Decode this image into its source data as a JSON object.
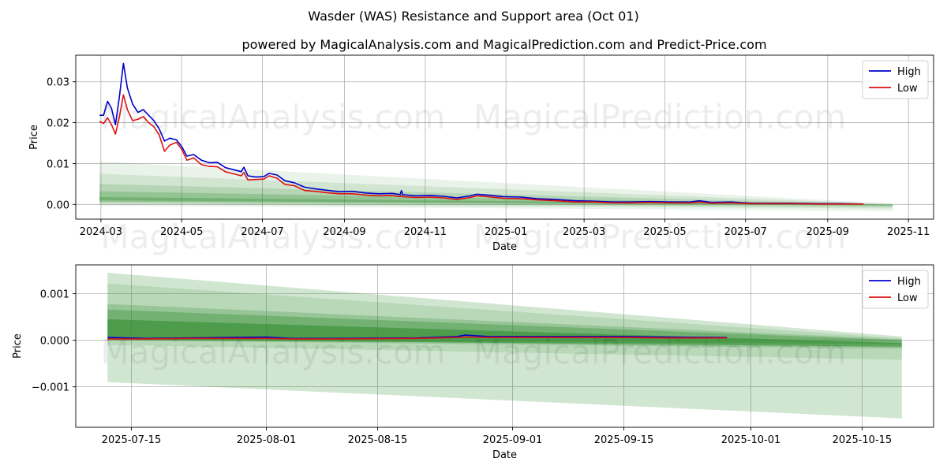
{
  "title": "Wasder (WAS) Resistance and Support area (Oct 01)",
  "subtitle": "powered by MagicalAnalysis.com and MagicalPrediction.com and Predict-Price.com",
  "watermarks": [
    "MagicalAnalysis.com",
    "MagicalPrediction.com"
  ],
  "colors": {
    "high": "#0000cc",
    "low": "#dd1111",
    "band": "#2e8b2e",
    "grid": "#b0b0b0"
  },
  "chart_data": [
    {
      "type": "line",
      "xlabel": "Date",
      "ylabel": "Price",
      "x_range": [
        "2024-02-11",
        "2025-11-20"
      ],
      "ylim": [
        -0.0036,
        0.0365
      ],
      "x_ticks": [
        "2024-03-01",
        "2024-05-01",
        "2024-07-01",
        "2024-09-01",
        "2024-11-01",
        "2025-01-01",
        "2025-03-01",
        "2025-05-01",
        "2025-07-01",
        "2025-09-01",
        "2025-11-01"
      ],
      "x_tick_labels": [
        "2024-03",
        "2024-05",
        "2024-07",
        "2024-09",
        "2024-11",
        "2025-01",
        "2025-03",
        "2025-05",
        "2025-07",
        "2025-09",
        "2025-11"
      ],
      "y_ticks": [
        0.0,
        0.01,
        0.02,
        0.03
      ],
      "y_tick_labels": [
        "0.00",
        "0.01",
        "0.02",
        "0.03"
      ],
      "legend": {
        "position": "top-right",
        "entries": [
          "High",
          "Low"
        ]
      },
      "bands": {
        "start": "2024-02-29",
        "end": "2025-10-20",
        "start_ranges": [
          [
            -0.0003,
            0.0105
          ],
          [
            0.0001,
            0.0075
          ],
          [
            0.0004,
            0.005
          ],
          [
            0.0007,
            0.0032
          ],
          [
            0.001,
            0.0018
          ]
        ],
        "end_ranges": [
          [
            -0.0016,
            0.0002
          ],
          [
            -0.001,
            0.0001
          ],
          [
            -0.0006,
            0.0
          ],
          [
            -0.0003,
            -0.0001
          ],
          [
            -0.00025,
            -0.00015
          ]
        ],
        "opacities": [
          0.1,
          0.13,
          0.17,
          0.24,
          0.32
        ]
      },
      "series": [
        {
          "name": "High",
          "points": [
            [
              "2024-02-29",
              0.0218
            ],
            [
              "2024-03-03",
              0.0218
            ],
            [
              "2024-03-06",
              0.0252
            ],
            [
              "2024-03-09",
              0.0235
            ],
            [
              "2024-03-12",
              0.0195
            ],
            [
              "2024-03-15",
              0.0265
            ],
            [
              "2024-03-18",
              0.0345
            ],
            [
              "2024-03-21",
              0.0285
            ],
            [
              "2024-03-25",
              0.0245
            ],
            [
              "2024-03-29",
              0.0225
            ],
            [
              "2024-04-02",
              0.0232
            ],
            [
              "2024-04-06",
              0.0218
            ],
            [
              "2024-04-10",
              0.0205
            ],
            [
              "2024-04-14",
              0.0185
            ],
            [
              "2024-04-18",
              0.0155
            ],
            [
              "2024-04-22",
              0.0162
            ],
            [
              "2024-04-27",
              0.0158
            ],
            [
              "2024-05-01",
              0.0142
            ],
            [
              "2024-05-05",
              0.0118
            ],
            [
              "2024-05-10",
              0.0122
            ],
            [
              "2024-05-16",
              0.0108
            ],
            [
              "2024-05-22",
              0.0102
            ],
            [
              "2024-05-28",
              0.0103
            ],
            [
              "2024-06-03",
              0.009
            ],
            [
              "2024-06-09",
              0.0085
            ],
            [
              "2024-06-15",
              0.008
            ],
            [
              "2024-06-17",
              0.0091
            ],
            [
              "2024-06-20",
              0.007
            ],
            [
              "2024-06-26",
              0.0067
            ],
            [
              "2024-07-02",
              0.0068
            ],
            [
              "2024-07-06",
              0.0076
            ],
            [
              "2024-07-12",
              0.0072
            ],
            [
              "2024-07-18",
              0.0058
            ],
            [
              "2024-07-25",
              0.0053
            ],
            [
              "2024-08-02",
              0.0042
            ],
            [
              "2024-08-10",
              0.0038
            ],
            [
              "2024-08-18",
              0.0035
            ],
            [
              "2024-08-28",
              0.0031
            ],
            [
              "2024-09-07",
              0.0032
            ],
            [
              "2024-09-17",
              0.0028
            ],
            [
              "2024-09-27",
              0.0026
            ],
            [
              "2024-10-07",
              0.0027
            ],
            [
              "2024-10-13",
              0.0024
            ],
            [
              "2024-10-14",
              0.0034
            ],
            [
              "2024-10-15",
              0.0024
            ],
            [
              "2024-10-25",
              0.0021
            ],
            [
              "2024-11-05",
              0.0022
            ],
            [
              "2024-11-15",
              0.002
            ],
            [
              "2024-11-25",
              0.0016
            ],
            [
              "2024-12-05",
              0.0021
            ],
            [
              "2024-12-10",
              0.0025
            ],
            [
              "2024-12-18",
              0.0023
            ],
            [
              "2024-12-30",
              0.0019
            ],
            [
              "2025-01-12",
              0.0018
            ],
            [
              "2025-01-25",
              0.0014
            ],
            [
              "2025-02-08",
              0.0012
            ],
            [
              "2025-02-22",
              0.0009
            ],
            [
              "2025-03-08",
              0.0008
            ],
            [
              "2025-03-22",
              0.0006
            ],
            [
              "2025-04-05",
              0.0006
            ],
            [
              "2025-04-20",
              0.0007
            ],
            [
              "2025-05-05",
              0.0006
            ],
            [
              "2025-05-20",
              0.0006
            ],
            [
              "2025-05-27",
              0.0009
            ],
            [
              "2025-06-05",
              0.0005
            ],
            [
              "2025-06-20",
              0.0006
            ],
            [
              "2025-07-05",
              0.0003
            ],
            [
              "2025-07-20",
              0.0003
            ],
            [
              "2025-08-05",
              0.0003
            ],
            [
              "2025-08-25",
              0.0002
            ],
            [
              "2025-09-10",
              0.0002
            ],
            [
              "2025-09-28",
              0.0001
            ]
          ]
        },
        {
          "name": "Low",
          "points": [
            [
              "2024-02-29",
              0.0203
            ],
            [
              "2024-03-03",
              0.0198
            ],
            [
              "2024-03-06",
              0.0212
            ],
            [
              "2024-03-09",
              0.0195
            ],
            [
              "2024-03-12",
              0.0172
            ],
            [
              "2024-03-15",
              0.0215
            ],
            [
              "2024-03-18",
              0.0268
            ],
            [
              "2024-03-21",
              0.0232
            ],
            [
              "2024-03-25",
              0.0205
            ],
            [
              "2024-03-29",
              0.0208
            ],
            [
              "2024-04-02",
              0.0215
            ],
            [
              "2024-04-06",
              0.02
            ],
            [
              "2024-04-10",
              0.019
            ],
            [
              "2024-04-14",
              0.017
            ],
            [
              "2024-04-18",
              0.013
            ],
            [
              "2024-04-22",
              0.0145
            ],
            [
              "2024-04-27",
              0.0152
            ],
            [
              "2024-05-01",
              0.0135
            ],
            [
              "2024-05-05",
              0.0108
            ],
            [
              "2024-05-10",
              0.0114
            ],
            [
              "2024-05-16",
              0.0097
            ],
            [
              "2024-05-22",
              0.0093
            ],
            [
              "2024-05-28",
              0.0092
            ],
            [
              "2024-06-03",
              0.008
            ],
            [
              "2024-06-09",
              0.0075
            ],
            [
              "2024-06-15",
              0.007
            ],
            [
              "2024-06-17",
              0.0078
            ],
            [
              "2024-06-20",
              0.006
            ],
            [
              "2024-06-26",
              0.0061
            ],
            [
              "2024-07-02",
              0.0062
            ],
            [
              "2024-07-06",
              0.007
            ],
            [
              "2024-07-12",
              0.0064
            ],
            [
              "2024-07-18",
              0.0049
            ],
            [
              "2024-07-25",
              0.0046
            ],
            [
              "2024-08-02",
              0.0034
            ],
            [
              "2024-08-10",
              0.0032
            ],
            [
              "2024-08-18",
              0.0029
            ],
            [
              "2024-08-28",
              0.0026
            ],
            [
              "2024-09-07",
              0.0026
            ],
            [
              "2024-09-17",
              0.0023
            ],
            [
              "2024-09-27",
              0.0021
            ],
            [
              "2024-10-07",
              0.0022
            ],
            [
              "2024-10-13",
              0.0019
            ],
            [
              "2024-10-14",
              0.0022
            ],
            [
              "2024-10-15",
              0.0019
            ],
            [
              "2024-10-25",
              0.0017
            ],
            [
              "2024-11-05",
              0.0018
            ],
            [
              "2024-11-15",
              0.0016
            ],
            [
              "2024-11-25",
              0.0012
            ],
            [
              "2024-12-05",
              0.0017
            ],
            [
              "2024-12-10",
              0.0021
            ],
            [
              "2024-12-18",
              0.0019
            ],
            [
              "2024-12-30",
              0.0015
            ],
            [
              "2025-01-12",
              0.0014
            ],
            [
              "2025-01-25",
              0.0011
            ],
            [
              "2025-02-08",
              0.0009
            ],
            [
              "2025-02-22",
              0.0006
            ],
            [
              "2025-03-08",
              0.0006
            ],
            [
              "2025-03-22",
              0.0004
            ],
            [
              "2025-04-05",
              0.0004
            ],
            [
              "2025-04-20",
              0.0005
            ],
            [
              "2025-05-05",
              0.0004
            ],
            [
              "2025-05-20",
              0.0004
            ],
            [
              "2025-05-27",
              0.0006
            ],
            [
              "2025-06-05",
              0.0003
            ],
            [
              "2025-06-20",
              0.0004
            ],
            [
              "2025-07-05",
              0.0002
            ],
            [
              "2025-07-20",
              0.0002
            ],
            [
              "2025-08-05",
              0.0002
            ],
            [
              "2025-08-25",
              0.0001
            ],
            [
              "2025-09-10",
              0.0001
            ],
            [
              "2025-09-28",
              0.0001
            ]
          ]
        }
      ]
    },
    {
      "type": "line",
      "xlabel": "Date",
      "ylabel": "Price",
      "x_range": [
        "2025-07-08",
        "2025-10-24"
      ],
      "ylim": [
        -0.00187,
        0.00162
      ],
      "x_ticks": [
        "2025-07-15",
        "2025-08-01",
        "2025-08-15",
        "2025-09-01",
        "2025-09-15",
        "2025-10-01",
        "2025-10-15"
      ],
      "x_tick_labels": [
        "2025-07-15",
        "2025-08-01",
        "2025-08-15",
        "2025-09-01",
        "2025-09-15",
        "2025-10-01",
        "2025-10-15"
      ],
      "y_ticks": [
        -0.001,
        0.0,
        0.001
      ],
      "y_tick_labels": [
        "−0.001",
        "0.000",
        "0.001"
      ],
      "legend": {
        "position": "top-right",
        "entries": [
          "High",
          "Low"
        ]
      },
      "bands": {
        "start": "2025-07-12",
        "end": "2025-10-20",
        "start_ranges": [
          [
            -0.0009,
            0.00145
          ],
          [
            -0.0001,
            0.00122
          ],
          [
            0.0,
            0.00078
          ],
          [
            0.0,
            0.00066
          ],
          [
            2e-05,
            0.00045
          ]
        ],
        "end_ranges": [
          [
            -0.00168,
            8e-05
          ],
          [
            -0.00042,
            4e-05
          ],
          [
            -0.00018,
            2e-05
          ],
          [
            -8e-05,
            0.0
          ],
          [
            -0.00014,
            -6e-05
          ]
        ],
        "opacities": [
          0.22,
          0.15,
          0.24,
          0.35,
          0.55
        ]
      },
      "series": [
        {
          "name": "High",
          "points": [
            [
              "2025-07-12",
              6e-05
            ],
            [
              "2025-07-17",
              4e-05
            ],
            [
              "2025-07-22",
              5e-05
            ],
            [
              "2025-07-27",
              6e-05
            ],
            [
              "2025-08-01",
              7e-05
            ],
            [
              "2025-08-04",
              4e-05
            ],
            [
              "2025-08-10",
              4e-05
            ],
            [
              "2025-08-20",
              5e-05
            ],
            [
              "2025-08-25",
              8e-05
            ],
            [
              "2025-08-26",
              0.00011
            ],
            [
              "2025-08-29",
              8e-05
            ],
            [
              "2025-09-05",
              8e-05
            ],
            [
              "2025-09-15",
              8e-05
            ],
            [
              "2025-09-20",
              7e-05
            ],
            [
              "2025-09-28",
              6e-05
            ]
          ]
        },
        {
          "name": "Low",
          "points": [
            [
              "2025-07-12",
              3e-05
            ],
            [
              "2025-07-17",
              3e-05
            ],
            [
              "2025-07-22",
              4e-05
            ],
            [
              "2025-07-27",
              4e-05
            ],
            [
              "2025-08-01",
              4e-05
            ],
            [
              "2025-08-04",
              3e-05
            ],
            [
              "2025-08-10",
              3e-05
            ],
            [
              "2025-08-20",
              4e-05
            ],
            [
              "2025-08-25",
              6e-05
            ],
            [
              "2025-08-26",
              7e-05
            ],
            [
              "2025-08-29",
              6e-05
            ],
            [
              "2025-09-05",
              6e-05
            ],
            [
              "2025-09-15",
              6e-05
            ],
            [
              "2025-09-20",
              5e-05
            ],
            [
              "2025-09-28",
              5e-05
            ]
          ]
        }
      ]
    }
  ]
}
